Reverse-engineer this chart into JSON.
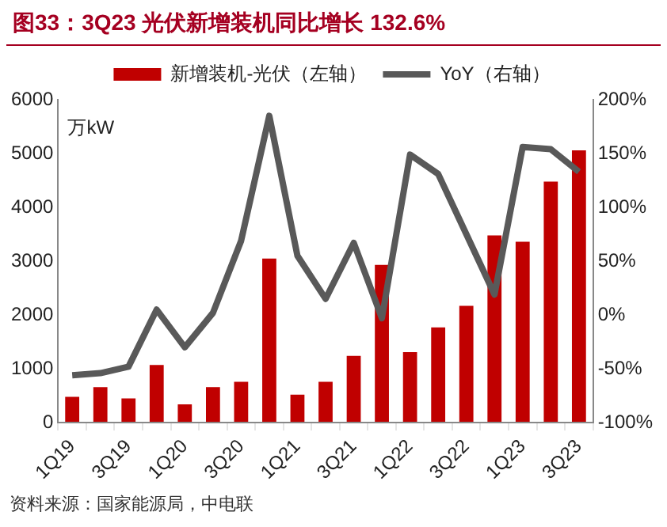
{
  "chart_data": {
    "type": "bar",
    "title": "图33：3Q23 光伏新增装机同比增长 132.6%",
    "categories": [
      "1Q19",
      null,
      "3Q19",
      null,
      "1Q20",
      null,
      "3Q20",
      null,
      "1Q21",
      null,
      "3Q21",
      null,
      "1Q22",
      null,
      "3Q22",
      null,
      "1Q23",
      null,
      "3Q23"
    ],
    "series": [
      {
        "name": "新增装机-光伏（左轴）",
        "color": "#c00000",
        "values": [
          480,
          660,
          450,
          1070,
          340,
          660,
          760,
          3050,
          520,
          760,
          1240,
          2930,
          1310,
          1770,
          2170,
          3480,
          3360,
          4480,
          5060
        ]
      },
      {
        "name": "YoY（右轴）",
        "type": "line",
        "axis": "y2",
        "color": "#595959",
        "values": [
          -56,
          -54,
          -48,
          5,
          -30,
          2,
          69,
          185,
          55,
          15,
          67,
          -3,
          149,
          131,
          75,
          19,
          156,
          154,
          133
        ]
      }
    ],
    "ylabel": "万kW",
    "ylim": [
      0,
      6000
    ],
    "yticks": [
      0,
      1000,
      2000,
      3000,
      4000,
      5000,
      6000
    ],
    "y2lim": [
      -100,
      200
    ],
    "y2ticks": [
      {
        "value": -100,
        "label": "-100%"
      },
      {
        "value": -50,
        "label": "-50%"
      },
      {
        "value": 0,
        "label": "0%"
      },
      {
        "value": 50,
        "label": "50%"
      },
      {
        "value": 100,
        "label": "100%"
      },
      {
        "value": 150,
        "label": "150%"
      },
      {
        "value": 200,
        "label": "200%"
      }
    ],
    "grid": false,
    "legend": "top",
    "marker": "none",
    "line_style": "solid",
    "annotations": [
      "资料来源：国家能源局，中电联"
    ]
  }
}
